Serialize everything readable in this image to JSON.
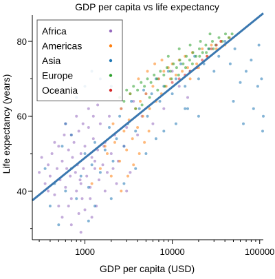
{
  "chart_data": {
    "type": "scatter",
    "title": "GDP per capita vs life expectancy",
    "xlabel": "GDP per capita (USD)",
    "ylabel": "Life expectancy (years)",
    "xscale": "log",
    "xlim": [
      250,
      110000
    ],
    "ylim": [
      27,
      87
    ],
    "x_ticks": [
      {
        "value": 1000,
        "label": "1000"
      },
      {
        "value": 10000,
        "label": "10000"
      },
      {
        "value": 100000,
        "label": "100000"
      }
    ],
    "y_ticks": [
      {
        "value": 40,
        "label": "40"
      },
      {
        "value": 60,
        "label": "60"
      },
      {
        "value": 80,
        "label": "80"
      }
    ],
    "grid": false,
    "legend_position": "top-left",
    "series": [
      {
        "name": "Africa",
        "color": "#9467bd",
        "points": [
          [
            300,
            45
          ],
          [
            320,
            49
          ],
          [
            350,
            42
          ],
          [
            380,
            47
          ],
          [
            400,
            44
          ],
          [
            420,
            50
          ],
          [
            450,
            39
          ],
          [
            480,
            46
          ],
          [
            500,
            52
          ],
          [
            520,
            43
          ],
          [
            550,
            48
          ],
          [
            580,
            55
          ],
          [
            600,
            41
          ],
          [
            620,
            46
          ],
          [
            650,
            51
          ],
          [
            680,
            44
          ],
          [
            700,
            38
          ],
          [
            720,
            49
          ],
          [
            750,
            53
          ],
          [
            780,
            45
          ],
          [
            800,
            40
          ],
          [
            820,
            47
          ],
          [
            850,
            56
          ],
          [
            880,
            43
          ],
          [
            900,
            50
          ],
          [
            930,
            38
          ],
          [
            960,
            46
          ],
          [
            1000,
            52
          ],
          [
            1050,
            44
          ],
          [
            1100,
            57
          ],
          [
            1150,
            41
          ],
          [
            1200,
            49
          ],
          [
            1250,
            54
          ],
          [
            1300,
            46
          ],
          [
            1350,
            36
          ],
          [
            1400,
            51
          ],
          [
            1450,
            43
          ],
          [
            1500,
            58
          ],
          [
            1600,
            47
          ],
          [
            1700,
            53
          ],
          [
            1800,
            45
          ],
          [
            1900,
            60
          ],
          [
            2000,
            50
          ],
          [
            2200,
            55
          ],
          [
            2400,
            48
          ],
          [
            2600,
            62
          ],
          [
            2800,
            52
          ],
          [
            3000,
            57
          ],
          [
            3300,
            45
          ],
          [
            3600,
            64
          ],
          [
            4000,
            55
          ],
          [
            4500,
            60
          ],
          [
            5000,
            66
          ],
          [
            6000,
            58
          ],
          [
            7000,
            70
          ],
          [
            8000,
            62
          ],
          [
            10000,
            72
          ],
          [
            12000,
            68
          ],
          [
            15000,
            65
          ],
          [
            550,
            33
          ],
          [
            700,
            31
          ],
          [
            900,
            29
          ],
          [
            1000,
            35
          ],
          [
            1200,
            33
          ],
          [
            450,
            53
          ],
          [
            600,
            58
          ],
          [
            800,
            60
          ],
          [
            1100,
            62
          ],
          [
            1400,
            63
          ],
          [
            380,
            40
          ],
          [
            650,
            36
          ],
          [
            850,
            34
          ],
          [
            1150,
            38
          ],
          [
            1700,
            40
          ],
          [
            2300,
            42
          ],
          [
            3000,
            40
          ],
          [
            700,
            55
          ],
          [
            950,
            58
          ],
          [
            1250,
            60
          ],
          [
            500,
            36
          ],
          [
            900,
            42
          ],
          [
            1300,
            48
          ],
          [
            1650,
            52
          ],
          [
            2100,
            46
          ]
        ]
      },
      {
        "name": "Americas",
        "color": "#ff7f0e",
        "points": [
          [
            1200,
            42
          ],
          [
            1500,
            46
          ],
          [
            1800,
            50
          ],
          [
            2000,
            44
          ],
          [
            2200,
            53
          ],
          [
            2500,
            48
          ],
          [
            2800,
            56
          ],
          [
            3000,
            51
          ],
          [
            3200,
            59
          ],
          [
            3500,
            54
          ],
          [
            3800,
            62
          ],
          [
            4000,
            57
          ],
          [
            4300,
            64
          ],
          [
            4600,
            60
          ],
          [
            5000,
            66
          ],
          [
            5500,
            62
          ],
          [
            6000,
            68
          ],
          [
            6500,
            64
          ],
          [
            7000,
            70
          ],
          [
            7500,
            66
          ],
          [
            8000,
            72
          ],
          [
            8500,
            68
          ],
          [
            9000,
            73
          ],
          [
            9500,
            70
          ],
          [
            10000,
            74
          ],
          [
            11000,
            71
          ],
          [
            12000,
            75
          ],
          [
            13000,
            72
          ],
          [
            14000,
            76
          ],
          [
            15000,
            73
          ],
          [
            17000,
            77
          ],
          [
            19000,
            74
          ],
          [
            22000,
            78
          ],
          [
            25000,
            76
          ],
          [
            28000,
            79
          ],
          [
            32000,
            78
          ],
          [
            36000,
            80
          ],
          [
            40000,
            79
          ],
          [
            45000,
            81
          ],
          [
            2600,
            40
          ],
          [
            3100,
            44
          ],
          [
            3600,
            47
          ],
          [
            4200,
            50
          ],
          [
            4800,
            53
          ],
          [
            5400,
            56
          ],
          [
            1700,
            52
          ],
          [
            2100,
            58
          ],
          [
            2600,
            62
          ],
          [
            3300,
            66
          ],
          [
            4100,
            70
          ],
          [
            5200,
            72
          ],
          [
            6300,
            74
          ],
          [
            7600,
            75
          ],
          [
            16000,
            70
          ],
          [
            20000,
            73
          ]
        ]
      },
      {
        "name": "Asia",
        "color": "#1f77b4",
        "points": [
          [
            400,
            36
          ],
          [
            450,
            42
          ],
          [
            500,
            31
          ],
          [
            600,
            40
          ],
          [
            700,
            46
          ],
          [
            800,
            38
          ],
          [
            900,
            44
          ],
          [
            1000,
            50
          ],
          [
            1100,
            41
          ],
          [
            1200,
            47
          ],
          [
            1300,
            53
          ],
          [
            1500,
            45
          ],
          [
            1700,
            51
          ],
          [
            1900,
            57
          ],
          [
            2100,
            48
          ],
          [
            2300,
            54
          ],
          [
            2500,
            60
          ],
          [
            2800,
            52
          ],
          [
            3100,
            58
          ],
          [
            3400,
            64
          ],
          [
            3800,
            56
          ],
          [
            4200,
            62
          ],
          [
            4700,
            67
          ],
          [
            5200,
            60
          ],
          [
            5800,
            66
          ],
          [
            6500,
            70
          ],
          [
            7200,
            64
          ],
          [
            8000,
            68
          ],
          [
            9000,
            72
          ],
          [
            10000,
            66
          ],
          [
            11000,
            70
          ],
          [
            12500,
            74
          ],
          [
            14000,
            68
          ],
          [
            16000,
            72
          ],
          [
            18000,
            76
          ],
          [
            20000,
            70
          ],
          [
            23000,
            74
          ],
          [
            26000,
            78
          ],
          [
            30000,
            72
          ],
          [
            34000,
            76
          ],
          [
            40000,
            80
          ],
          [
            46000,
            74
          ],
          [
            52000,
            78
          ],
          [
            60000,
            69
          ],
          [
            70000,
            72
          ],
          [
            80000,
            75
          ],
          [
            95000,
            68
          ],
          [
            105000,
            70
          ],
          [
            108000,
            56
          ],
          [
            110000,
            60
          ],
          [
            98000,
            79
          ],
          [
            85000,
            62
          ],
          [
            65000,
            58
          ],
          [
            50000,
            64
          ],
          [
            600,
            58
          ],
          [
            800,
            65
          ],
          [
            1000,
            68
          ],
          [
            350,
            46
          ],
          [
            550,
            52
          ],
          [
            2000,
            68
          ],
          [
            1500,
            70
          ],
          [
            1200,
            72
          ],
          [
            14000,
            62
          ],
          [
            20000,
            60
          ],
          [
            1300,
            36
          ],
          [
            2000,
            38
          ],
          [
            2800,
            42
          ],
          [
            3800,
            46
          ],
          [
            5000,
            50
          ],
          [
            6500,
            54
          ],
          [
            8000,
            56
          ],
          [
            11000,
            58
          ],
          [
            15000,
            62
          ],
          [
            700,
            55
          ],
          [
            1100,
            32
          ]
        ]
      },
      {
        "name": "Europe",
        "color": "#2ca02c",
        "points": [
          [
            2500,
            65
          ],
          [
            2800,
            64
          ],
          [
            3000,
            67
          ],
          [
            3300,
            66
          ],
          [
            3600,
            68
          ],
          [
            4000,
            67
          ],
          [
            4400,
            69
          ],
          [
            4800,
            68
          ],
          [
            5200,
            70
          ],
          [
            5700,
            69
          ],
          [
            6200,
            71
          ],
          [
            6700,
            70
          ],
          [
            7300,
            72
          ],
          [
            8000,
            71
          ],
          [
            8700,
            73
          ],
          [
            9500,
            72
          ],
          [
            10300,
            74
          ],
          [
            11200,
            73
          ],
          [
            12200,
            75
          ],
          [
            13300,
            74
          ],
          [
            14500,
            76
          ],
          [
            15800,
            75
          ],
          [
            17200,
            77
          ],
          [
            18700,
            76
          ],
          [
            20400,
            78
          ],
          [
            22200,
            77
          ],
          [
            24200,
            79
          ],
          [
            26400,
            78
          ],
          [
            28800,
            80
          ],
          [
            31400,
            79
          ],
          [
            34200,
            81
          ],
          [
            37300,
            80
          ],
          [
            40600,
            82
          ],
          [
            44300,
            81
          ],
          [
            48300,
            82
          ],
          [
            3800,
            62
          ],
          [
            4500,
            63
          ],
          [
            5500,
            65
          ],
          [
            6800,
            67
          ],
          [
            8200,
            68
          ],
          [
            9800,
            70
          ],
          [
            11800,
            71
          ],
          [
            14200,
            73
          ],
          [
            17000,
            74
          ],
          [
            20500,
            76
          ],
          [
            24500,
            77
          ],
          [
            29500,
            78
          ],
          [
            9000,
            76
          ],
          [
            12000,
            78
          ],
          [
            16000,
            79
          ],
          [
            21000,
            80
          ],
          [
            27000,
            82
          ]
        ]
      },
      {
        "name": "Oceania",
        "color": "#d62728",
        "points": [
          [
            10000,
            69
          ],
          [
            12000,
            70
          ],
          [
            14000,
            71
          ],
          [
            16000,
            72
          ],
          [
            19000,
            73
          ],
          [
            22000,
            75
          ],
          [
            25000,
            76
          ],
          [
            28000,
            78
          ],
          [
            32000,
            79
          ],
          [
            36000,
            80
          ]
        ]
      }
    ],
    "trendline": {
      "color": "#3b78b0",
      "points": [
        [
          250,
          37.5
        ],
        [
          110000,
          87.5
        ]
      ]
    }
  }
}
